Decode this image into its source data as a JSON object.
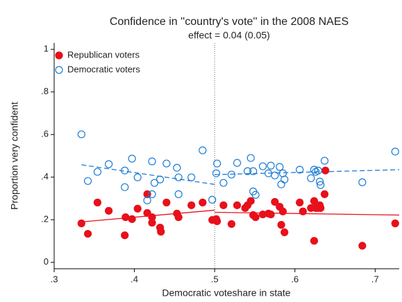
{
  "chart_data": {
    "type": "scatter",
    "title": "Confidence in ''country's vote'' in the 2008 NAES",
    "subtitle": "effect = 0.04 (0.05)",
    "x_label": "Democratic voteshare in state",
    "y_label": "Proportion very confident",
    "xlim": [
      0.3,
      0.73
    ],
    "ylim": [
      -0.03,
      1.03
    ],
    "xticks": [
      {
        "value": 0.3,
        "label": ".3"
      },
      {
        "value": 0.4,
        "label": ".4"
      },
      {
        "value": 0.5,
        "label": ".5"
      },
      {
        "value": 0.6,
        "label": ".6"
      },
      {
        "value": 0.7,
        "label": ".7"
      }
    ],
    "yticks": [
      0,
      {
        "value": 0.2,
        "label": ".2"
      },
      {
        "value": 0.4,
        "label": ".4"
      },
      {
        "value": 0.6,
        "label": ".6"
      },
      {
        "value": 0.8,
        "label": ".8"
      },
      1
    ],
    "cutoff": 0.5,
    "legend_position": "top-left",
    "series": [
      {
        "name": "Republican voters",
        "color": "#e8101a",
        "filled": true,
        "x": [
          0.334,
          0.342,
          0.354,
          0.368,
          0.388,
          0.389,
          0.397,
          0.404,
          0.416,
          0.422,
          0.422,
          0.432,
          0.433,
          0.44,
          0.453,
          0.455,
          0.471,
          0.485,
          0.497,
          0.502,
          0.503,
          0.511,
          0.521,
          0.528,
          0.541,
          0.545,
          0.548,
          0.551,
          0.56,
          0.567,
          0.57,
          0.575,
          0.581,
          0.583,
          0.585,
          0.587,
          0.606,
          0.61,
          0.62,
          0.626,
          0.624,
          0.624,
          0.629,
          0.631,
          0.632,
          0.637,
          0.638,
          0.684,
          0.725,
          0.416,
          0.538
        ],
        "values": [
          0.183,
          0.134,
          0.281,
          0.242,
          0.127,
          0.212,
          0.203,
          0.252,
          0.232,
          0.212,
          0.186,
          0.163,
          0.144,
          0.281,
          0.229,
          0.212,
          0.268,
          0.281,
          0.199,
          0.203,
          0.193,
          0.268,
          0.18,
          0.268,
          0.268,
          0.288,
          0.222,
          0.212,
          0.225,
          0.229,
          0.225,
          0.284,
          0.261,
          0.176,
          0.239,
          0.141,
          0.281,
          0.239,
          0.255,
          0.255,
          0.288,
          0.101,
          0.255,
          0.268,
          0.255,
          0.32,
          0.431,
          0.078,
          0.183,
          0.32,
          0.255
        ]
      },
      {
        "name": "Democratic voters",
        "color": "#1a7bd4",
        "filled": false,
        "x": [
          0.334,
          0.342,
          0.354,
          0.368,
          0.388,
          0.388,
          0.397,
          0.404,
          0.416,
          0.422,
          0.422,
          0.425,
          0.432,
          0.44,
          0.453,
          0.455,
          0.455,
          0.471,
          0.485,
          0.497,
          0.502,
          0.503,
          0.511,
          0.521,
          0.528,
          0.541,
          0.545,
          0.548,
          0.551,
          0.548,
          0.56,
          0.567,
          0.57,
          0.575,
          0.581,
          0.583,
          0.585,
          0.587,
          0.606,
          0.62,
          0.624,
          0.626,
          0.629,
          0.631,
          0.637,
          0.632,
          0.684,
          0.725
        ],
        "values": [
          0.601,
          0.382,
          0.425,
          0.461,
          0.353,
          0.431,
          0.487,
          0.399,
          0.291,
          0.474,
          0.32,
          0.373,
          0.389,
          0.464,
          0.444,
          0.399,
          0.32,
          0.399,
          0.526,
          0.294,
          0.418,
          0.464,
          0.373,
          0.412,
          0.467,
          0.428,
          0.49,
          0.333,
          0.317,
          0.428,
          0.451,
          0.418,
          0.454,
          0.408,
          0.448,
          0.366,
          0.418,
          0.389,
          0.435,
          0.395,
          0.435,
          0.425,
          0.431,
          0.379,
          0.477,
          0.363,
          0.376,
          0.52
        ]
      }
    ],
    "fit_lines": [
      {
        "color": "#e8101a",
        "dashed": false,
        "x": [
          0.334,
          0.5
        ],
        "values": [
          0.19,
          0.245
        ]
      },
      {
        "color": "#e8101a",
        "dashed": false,
        "x": [
          0.5,
          0.73
        ],
        "values": [
          0.235,
          0.222
        ]
      },
      {
        "color": "#1a7bd4",
        "dashed": true,
        "x": [
          0.334,
          0.5
        ],
        "values": [
          0.458,
          0.366
        ]
      },
      {
        "color": "#1a7bd4",
        "dashed": true,
        "x": [
          0.5,
          0.73
        ],
        "values": [
          0.412,
          0.435
        ]
      }
    ]
  }
}
